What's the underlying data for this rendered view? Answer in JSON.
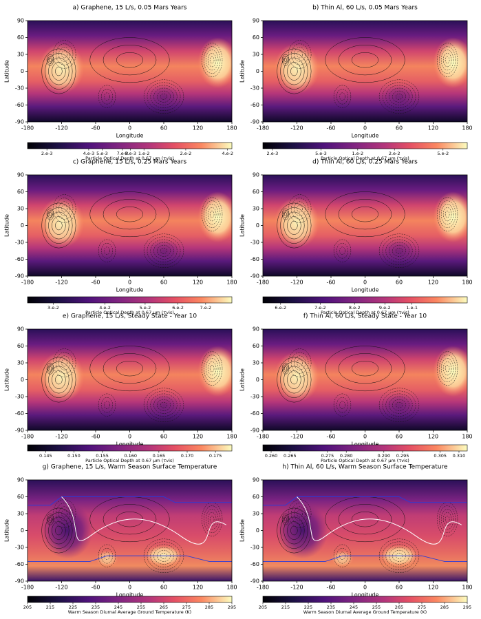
{
  "chart_data": [
    {
      "type": "heatmap",
      "title": "a) Graphene, 15 L/s, 0.05 Mars Years",
      "xlabel": "Longitude",
      "ylabel": "Latitude",
      "colormap": "magma",
      "xlim": [
        -180,
        180
      ],
      "xticks": [
        -180,
        -120,
        -60,
        0,
        60,
        120,
        180
      ],
      "ylim": [
        -90,
        90
      ],
      "yticks": [
        -90,
        -60,
        -30,
        0,
        30,
        60,
        90
      ],
      "colorbar": {
        "label": "Particle Optical Depth at 0.67 µm (τvis)",
        "log": true,
        "lim": [
          0.00145,
          0.043
        ],
        "ticks": [
          {
            "value": 0.002,
            "label": "2.e-3"
          },
          {
            "value": 0.004,
            "label": "4.e-3"
          },
          {
            "value": 0.005,
            "label": "5.e-3"
          },
          {
            "value": 0.007,
            "label": "7.e-3"
          },
          {
            "value": 0.008,
            "label": "8.e-3"
          },
          {
            "value": 0.01,
            "label": "1.e-2"
          },
          {
            "value": 0.02,
            "label": "2.e-2"
          },
          {
            "value": 0.04,
            "label": "4.e-2"
          }
        ]
      }
    },
    {
      "type": "heatmap",
      "title": "b) Thin Al, 60 L/s, 0.05 Mars Years",
      "xlabel": "Longitude",
      "ylabel": "Latitude",
      "colormap": "magma",
      "xlim": [
        -180,
        180
      ],
      "xticks": [
        -180,
        -120,
        -60,
        0,
        60,
        120,
        180
      ],
      "ylim": [
        -90,
        90
      ],
      "yticks": [
        -90,
        -60,
        -30,
        0,
        30,
        60,
        90
      ],
      "colorbar": {
        "label": "Particle Optical Depth at 0.67 µm (τvis)",
        "log": true,
        "lim": [
          0.00167,
          0.079
        ],
        "ticks": [
          {
            "value": 0.002,
            "label": "2.e-3"
          },
          {
            "value": 0.005,
            "label": "5.e-3"
          },
          {
            "value": 0.01,
            "label": "1.e-2"
          },
          {
            "value": 0.02,
            "label": "2.e-2"
          },
          {
            "value": 0.05,
            "label": "5.e-2"
          }
        ]
      }
    },
    {
      "type": "heatmap",
      "title": "c) Graphene, 15 L/s, 0.25 Mars Years",
      "xlabel": "Longitude",
      "ylabel": "Latitude",
      "colormap": "magma",
      "xlim": [
        -180,
        180
      ],
      "xticks": [
        -180,
        -120,
        -60,
        0,
        60,
        120,
        180
      ],
      "ylim": [
        -90,
        90
      ],
      "yticks": [
        -90,
        -60,
        -30,
        0,
        30,
        60,
        90
      ],
      "colorbar": {
        "label": "Particle Optical Depth at 0.67 µm (τvis)",
        "log": true,
        "lim": [
          0.026,
          0.081
        ],
        "ticks": [
          {
            "value": 0.03,
            "label": "3.e-2"
          },
          {
            "value": 0.04,
            "label": "4.e-2"
          },
          {
            "value": 0.05,
            "label": "5.e-2"
          },
          {
            "value": 0.06,
            "label": "6.e-2"
          },
          {
            "value": 0.07,
            "label": "7.e-2"
          }
        ]
      }
    },
    {
      "type": "heatmap",
      "title": "d) Thin Al, 60 L/s, 0.25 Mars Years",
      "xlabel": "Longitude",
      "ylabel": "Latitude",
      "colormap": "magma",
      "xlim": [
        -180,
        180
      ],
      "xticks": [
        -180,
        -120,
        -60,
        0,
        60,
        120,
        180
      ],
      "ylim": [
        -90,
        90
      ],
      "yticks": [
        -90,
        -60,
        -30,
        0,
        30,
        60,
        90
      ],
      "colorbar": {
        "label": "Particle Optical Depth at 0.67 µm (τvis)",
        "log": true,
        "lim": [
          0.056,
          0.124
        ],
        "ticks": [
          {
            "value": 0.06,
            "label": "6.e-2"
          },
          {
            "value": 0.07,
            "label": "7.e-2"
          },
          {
            "value": 0.08,
            "label": "8.e-2"
          },
          {
            "value": 0.09,
            "label": "9.e-2"
          },
          {
            "value": 0.1,
            "label": "1.e-1"
          }
        ]
      }
    },
    {
      "type": "heatmap",
      "title": "e) Graphene, 15 L/s, Steady State - Year 10",
      "xlabel": "Longitude",
      "ylabel": "Latitude",
      "colormap": "magma",
      "xlim": [
        -180,
        180
      ],
      "xticks": [
        -180,
        -120,
        -60,
        0,
        60,
        120,
        180
      ],
      "ylim": [
        -90,
        90
      ],
      "yticks": [
        -90,
        -60,
        -30,
        0,
        30,
        60,
        90
      ],
      "colorbar": {
        "label": "Particle Optical Depth at 0.67 µm (τvis)",
        "log": false,
        "lim": [
          0.1418,
          0.1779
        ],
        "ticks": [
          0.145,
          {
            "value": 0.15,
            "label": "0.150"
          },
          0.155,
          {
            "value": 0.16,
            "label": "0.160"
          },
          0.165,
          {
            "value": 0.17,
            "label": "0.170"
          },
          0.175
        ]
      }
    },
    {
      "type": "heatmap",
      "title": "f) Thin Al, 60 L/s, Steady State - Year 10",
      "xlabel": "Longitude",
      "ylabel": "Latitude",
      "colormap": "magma",
      "xlim": [
        -180,
        180
      ],
      "xticks": [
        -180,
        -120,
        -60,
        0,
        60,
        120,
        180
      ],
      "ylim": [
        -90,
        90
      ],
      "yticks": [
        -90,
        -60,
        -30,
        0,
        30,
        60,
        90
      ],
      "colorbar": {
        "label": "Particle Optical Depth at 0.67 µm (τvis)",
        "log": false,
        "lim": [
          0.2578,
          0.3122
        ],
        "ticks": [
          {
            "value": 0.26,
            "label": "0.260"
          },
          0.265,
          0.275,
          {
            "value": 0.28,
            "label": "0.280"
          },
          {
            "value": 0.29,
            "label": "0.290"
          },
          0.295,
          0.305,
          {
            "value": 0.31,
            "label": "0.310"
          }
        ]
      }
    },
    {
      "type": "heatmap",
      "title": "g) Graphene, 15 L/s, Warm Season Surface Temperature",
      "xlabel": "Longitude",
      "ylabel": "Latitude",
      "colormap": "magma",
      "xlim": [
        -180,
        180
      ],
      "xticks": [
        -180,
        -120,
        -60,
        0,
        60,
        120,
        180
      ],
      "ylim": [
        -90,
        90
      ],
      "yticks": [
        -90,
        -60,
        -30,
        0,
        30,
        60,
        90
      ],
      "colorbar": {
        "label": "Warm Season Diurnal Average Ground Temperature (K)",
        "log": false,
        "lim": [
          205,
          295
        ],
        "ticks": [
          205,
          215,
          225,
          235,
          245,
          255,
          265,
          275,
          285,
          295
        ]
      }
    },
    {
      "type": "heatmap",
      "title": "h) Thin Al, 60 L/s, Warm Season Surface Temperature",
      "xlabel": "Longitude",
      "ylabel": "Latitude",
      "colormap": "magma",
      "xlim": [
        -180,
        180
      ],
      "xticks": [
        -180,
        -120,
        -60,
        0,
        60,
        120,
        180
      ],
      "ylim": [
        -90,
        90
      ],
      "yticks": [
        -90,
        -60,
        -30,
        0,
        30,
        60,
        90
      ],
      "colorbar": {
        "label": "Warm Season Diurnal Average Ground Temperature (K)",
        "log": false,
        "lim": [
          205,
          295
        ],
        "ticks": [
          205,
          215,
          225,
          235,
          245,
          255,
          265,
          275,
          285,
          295
        ]
      }
    }
  ]
}
